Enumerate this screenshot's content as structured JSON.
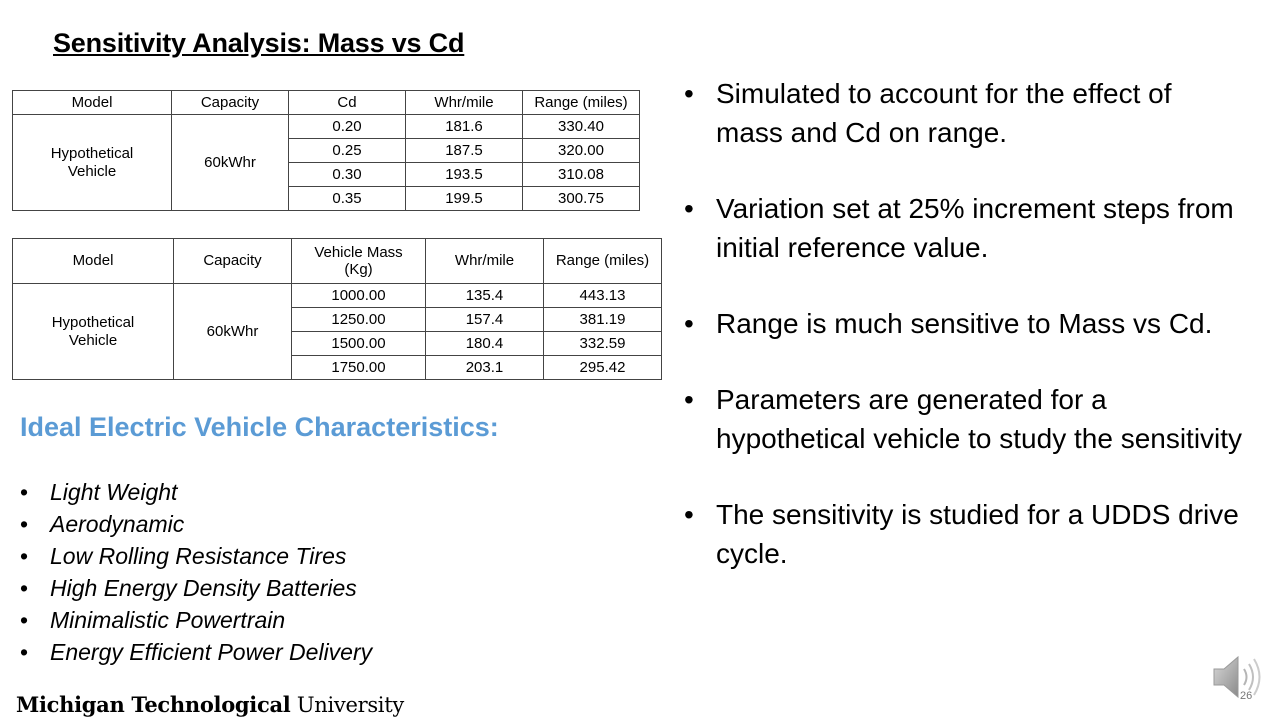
{
  "slide": {
    "title": "Sensitivity Analysis: Mass vs Cd",
    "page_number": "26"
  },
  "table1": {
    "headers": [
      "Model",
      "Capacity",
      "Cd",
      "Whr/mile",
      "Range (miles)"
    ],
    "model": "Hypothetical Vehicle",
    "capacity": "60kWhr",
    "rows": [
      [
        "0.20",
        "181.6",
        "330.40"
      ],
      [
        "0.25",
        "187.5",
        "320.00"
      ],
      [
        "0.30",
        "193.5",
        "310.08"
      ],
      [
        "0.35",
        "199.5",
        "300.75"
      ]
    ]
  },
  "table2": {
    "headers": [
      "Model",
      "Capacity",
      "Vehicle Mass (Kg)",
      "Whr/mile",
      "Range (miles)"
    ],
    "model": "Hypothetical Vehicle",
    "capacity": "60kWhr",
    "rows": [
      [
        "1000.00",
        "135.4",
        "443.13"
      ],
      [
        "1250.00",
        "157.4",
        "381.19"
      ],
      [
        "1500.00",
        "180.4",
        "332.59"
      ],
      [
        "1750.00",
        "203.1",
        "295.42"
      ]
    ]
  },
  "ideal": {
    "heading": "Ideal Electric Vehicle Characteristics:",
    "items": [
      "Light Weight",
      "Aerodynamic",
      "Low Rolling Resistance Tires",
      "High Energy Density Batteries",
      "Minimalistic Powertrain",
      "Energy Efficient Power Delivery"
    ]
  },
  "points": [
    "Simulated to account for the effect of mass and Cd on range.",
    "Variation set at 25% increment steps from initial reference value.",
    "Range is much sensitive to Mass vs Cd.",
    "Parameters are generated for a hypothetical vehicle to study the sensitivity",
    "The sensitivity is studied for a UDDS drive cycle."
  ],
  "footer": {
    "bold": "Michigan Technological",
    "regular": "University"
  },
  "icons": {
    "speaker": "speaker-icon"
  }
}
